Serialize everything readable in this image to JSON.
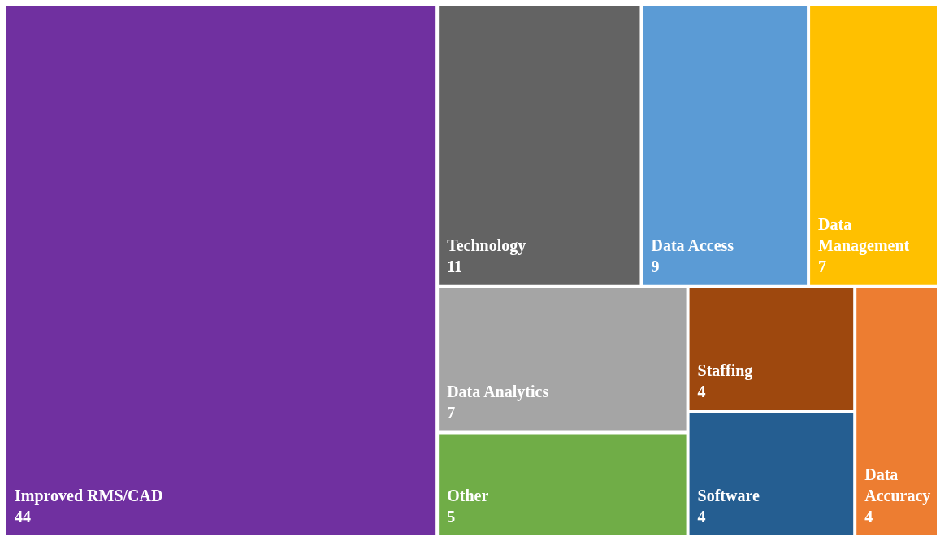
{
  "chart_data": {
    "type": "other",
    "categories": [
      "Improved RMS/CAD",
      "Technology",
      "Data Access",
      "Data Analytics",
      "Data Management",
      "Other",
      "Data Accuracy",
      "Software",
      "Staffing"
    ],
    "values": [
      44,
      11,
      9,
      7,
      7,
      5,
      4,
      4,
      4
    ],
    "colors": [
      "#7030a0",
      "#636363",
      "#5b9bd5",
      "#a5a5a5",
      "#ffc000",
      "#70ad47",
      "#ed7d31",
      "#255e91",
      "#9e480e"
    ],
    "data_labels": true
  }
}
